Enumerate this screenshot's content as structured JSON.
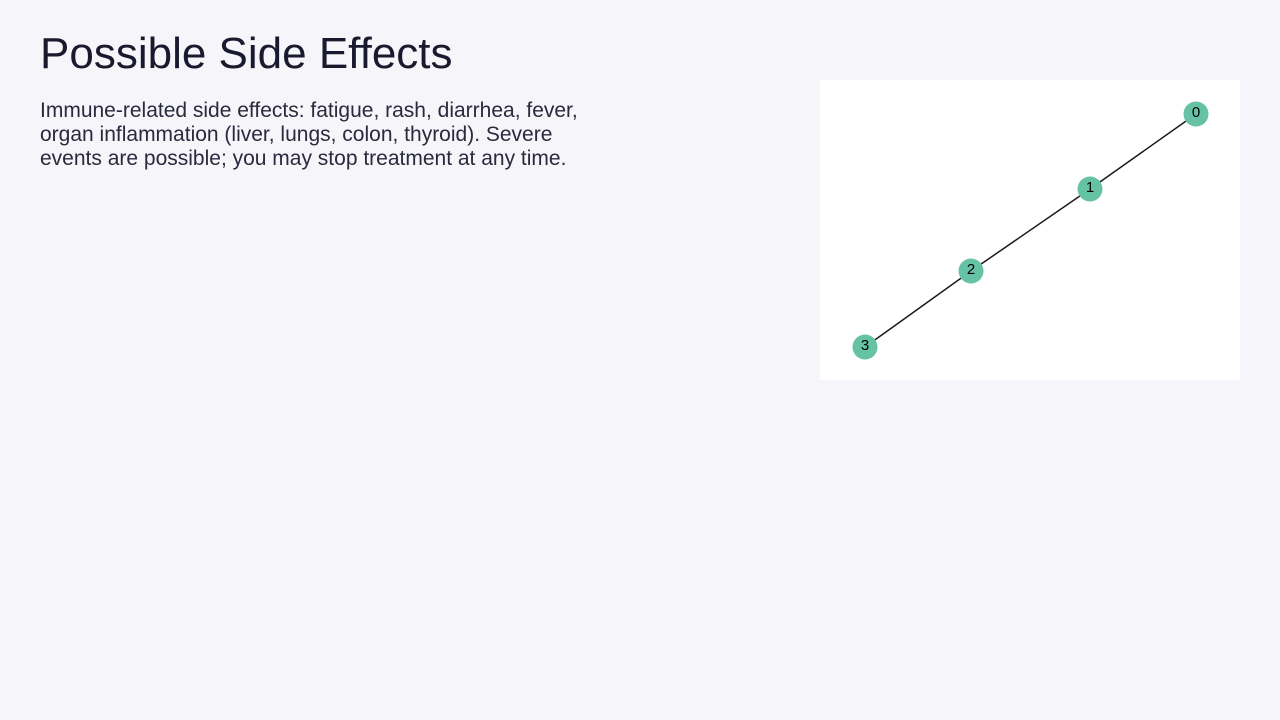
{
  "slide": {
    "title": "Possible Side Effects",
    "body": "Immune-related side effects: fatigue, rash, diarrhea, fever, organ inflammation (liver, lungs, colon, thyroid). Severe events are possible; you may stop treatment at any time."
  },
  "diagram": {
    "node_color": "#66c2a5",
    "edge_color": "#1a1a1a",
    "nodes": [
      {
        "id": "0",
        "label": "0"
      },
      {
        "id": "1",
        "label": "1"
      },
      {
        "id": "2",
        "label": "2"
      },
      {
        "id": "3",
        "label": "3"
      }
    ],
    "edges": [
      {
        "source": "0",
        "target": "1"
      },
      {
        "source": "1",
        "target": "2"
      },
      {
        "source": "2",
        "target": "3"
      }
    ]
  }
}
